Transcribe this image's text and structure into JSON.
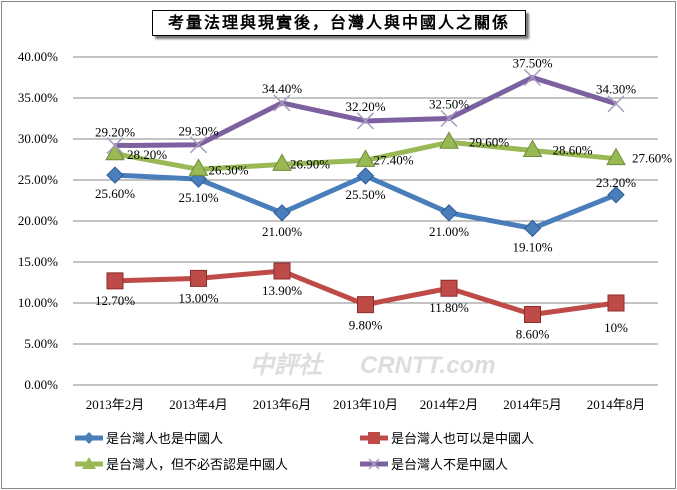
{
  "chart_data": {
    "type": "line",
    "title": "考量法理與現實後，台灣人與中國人之關係",
    "categories": [
      "2013年2月",
      "2013年4月",
      "2013年6月",
      "2013年10月",
      "2014年2月",
      "2014年5月",
      "2014年8月"
    ],
    "ylim": [
      0,
      40
    ],
    "yticks": [
      "0.00%",
      "5.00%",
      "10.00%",
      "15.00%",
      "20.00%",
      "25.00%",
      "30.00%",
      "35.00%",
      "40.00%"
    ],
    "grid": true,
    "legend_position": "bottom",
    "series": [
      {
        "name": "是台灣人也是中國人",
        "color": "#4a7ebb",
        "marker": "diamond",
        "values": [
          25.6,
          25.1,
          21.0,
          25.5,
          21.0,
          19.1,
          23.2
        ],
        "labels": [
          "25.60%",
          "25.10%",
          "21.00%",
          "25.50%",
          "21.00%",
          "19.10%",
          "23.20%"
        ]
      },
      {
        "name": "是台灣人也可以是中國人",
        "color": "#be4b48",
        "marker": "square",
        "values": [
          12.7,
          13.0,
          13.9,
          9.8,
          11.8,
          8.6,
          10
        ],
        "labels": [
          "12.70%",
          "13.00%",
          "13.90%",
          "9.80%",
          "11.80%",
          "8.60%",
          "10%"
        ]
      },
      {
        "name": "是台灣人，但不必否認是中國人",
        "color": "#98b954",
        "marker": "triangle",
        "values": [
          28.2,
          26.3,
          26.9,
          27.4,
          29.6,
          28.6,
          27.6
        ],
        "labels": [
          "28.20%",
          "26.30%",
          "26.90%",
          "27.40%",
          "29.60%",
          "28.60%",
          "27.60%"
        ]
      },
      {
        "name": "是台灣人不是中國人",
        "color": "#7d60a0",
        "marker": "x",
        "values": [
          29.2,
          29.3,
          34.4,
          32.2,
          32.5,
          37.5,
          34.3
        ],
        "labels": [
          "29.20%",
          "29.30%",
          "34.40%",
          "32.20%",
          "32.50%",
          "37.50%",
          "34.30%"
        ]
      }
    ]
  },
  "watermark": "中評社 CRNTT.com"
}
